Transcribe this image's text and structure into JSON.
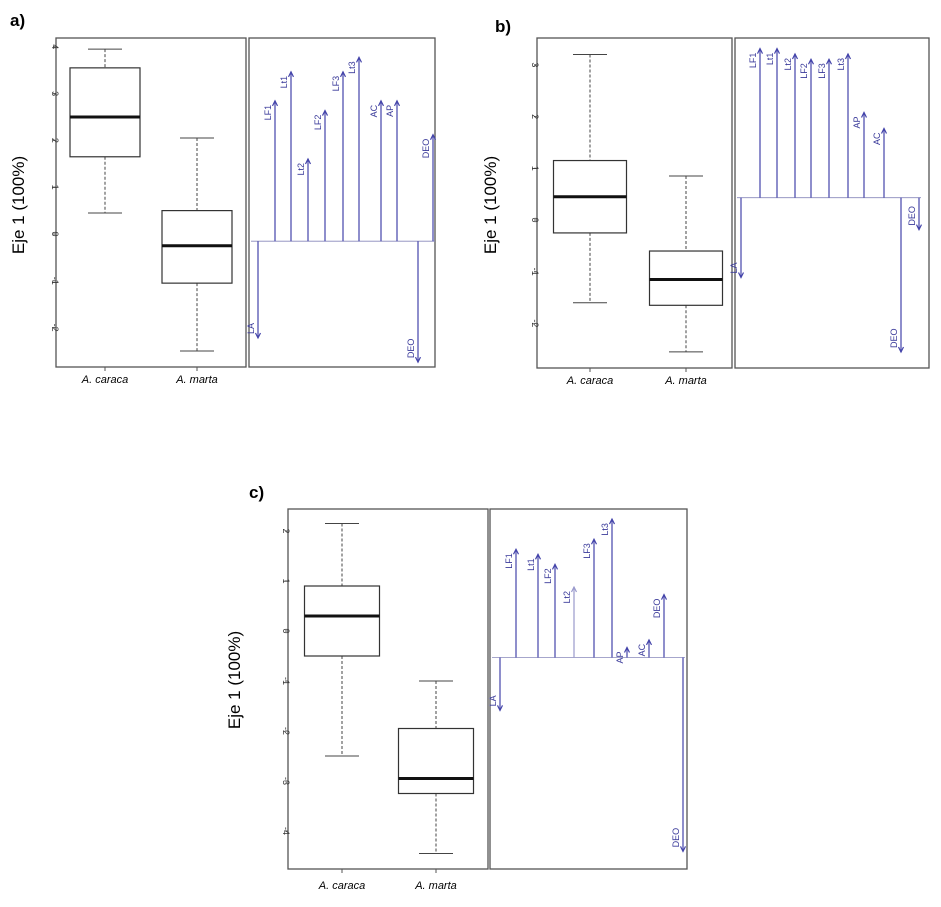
{
  "chart_data": [
    {
      "panel": "a)",
      "type": "boxplot",
      "ylabel": "Eje 1 (100%)",
      "ylim": [
        -2.6,
        4.2
      ],
      "yticks": [
        "-2",
        "-1",
        "0",
        "1",
        "2",
        "3",
        "4"
      ],
      "categories": [
        "A. caraca",
        "A. marta"
      ],
      "boxes": [
        {
          "name": "A. caraca",
          "min": 0.45,
          "q1": 1.65,
          "median": 2.5,
          "q3": 3.55,
          "max": 3.95
        },
        {
          "name": "A. marta",
          "min": -2.5,
          "q1": -1.05,
          "median": -0.25,
          "q3": 0.5,
          "max": 2.05
        }
      ],
      "biplot": {
        "ylim": [
          -2.6,
          4.2
        ],
        "base": 0,
        "arrows": [
          {
            "label": "LA",
            "value": -2.0,
            "color": "#4444aa"
          },
          {
            "label": "LF1",
            "value": 2.9,
            "color": "#4444aa"
          },
          {
            "label": "Lt1",
            "value": 3.5,
            "color": "#4444aa"
          },
          {
            "label": "Lt2",
            "value": 1.7,
            "color": "#4444aa"
          },
          {
            "label": "LF2",
            "value": 2.7,
            "color": "#4444aa"
          },
          {
            "label": "LF3",
            "value": 3.5,
            "color": "#4444aa"
          },
          {
            "label": "Lt3",
            "value": 3.8,
            "color": "#4444aa"
          },
          {
            "label": "AC",
            "value": 2.9,
            "color": "#4444aa"
          },
          {
            "label": "AP",
            "value": 2.9,
            "color": "#4444aa"
          },
          {
            "label": "DEO",
            "value": -2.5,
            "color": "#4444aa"
          },
          {
            "label": "DEO",
            "value": 2.2,
            "color": "#4444aa"
          }
        ]
      }
    },
    {
      "panel": "b)",
      "type": "boxplot",
      "ylabel": "Eje 1 (100%)",
      "ylim": [
        -2.8,
        3.4
      ],
      "yticks": [
        "-2",
        "-1",
        "0",
        "1",
        "2",
        "3"
      ],
      "categories": [
        "A. caraca",
        "A. marta"
      ],
      "boxes": [
        {
          "name": "A. caraca",
          "min": -1.6,
          "q1": -0.25,
          "median": 0.45,
          "q3": 1.15,
          "max": 3.2
        },
        {
          "name": "A. marta",
          "min": -2.55,
          "q1": -1.65,
          "median": -1.15,
          "q3": -0.6,
          "max": 0.85
        }
      ],
      "biplot": {
        "ylim": [
          -2.8,
          3.4
        ],
        "base": 0.4,
        "arrows": [
          {
            "label": "LA",
            "value": -1.1,
            "color": "#4444aa"
          },
          {
            "label": "LF1",
            "value": 3.2,
            "color": "#4444aa"
          },
          {
            "label": "Lt1",
            "value": 3.2,
            "color": "#4444aa"
          },
          {
            "label": "Lt2",
            "value": 3.1,
            "color": "#4444aa"
          },
          {
            "label": "LF2",
            "value": 3.0,
            "color": "#4444aa"
          },
          {
            "label": "LF3",
            "value": 3.0,
            "color": "#4444aa"
          },
          {
            "label": "Lt3",
            "value": 3.1,
            "color": "#4444aa"
          },
          {
            "label": "AP",
            "value": 2.0,
            "color": "#4444aa"
          },
          {
            "label": "AC",
            "value": 1.7,
            "color": "#4444aa"
          },
          {
            "label": "DEO",
            "value": -2.5,
            "color": "#4444aa"
          },
          {
            "label": "DEO",
            "value": -0.2,
            "color": "#4444aa"
          }
        ]
      }
    },
    {
      "panel": "c)",
      "type": "boxplot",
      "ylabel": "Eje 1 (100%)",
      "ylim": [
        -4.8,
        2.35
      ],
      "yticks": [
        "-4",
        "-3",
        "-2",
        "-1",
        "0",
        "1",
        "2"
      ],
      "categories": [
        "A. caraca",
        "A. marta"
      ],
      "boxes": [
        {
          "name": "A. caraca",
          "min": -2.5,
          "q1": -0.5,
          "median": 0.3,
          "q3": 0.9,
          "max": 2.15
        },
        {
          "name": "A. marta",
          "min": -4.45,
          "q1": -3.25,
          "median": -2.95,
          "q3": -1.95,
          "max": -1.0
        }
      ],
      "biplot": {
        "ylim": [
          -4.8,
          2.35
        ],
        "base": -0.6,
        "arrows": [
          {
            "label": "LA",
            "value": -1.65,
            "color": "#4444aa"
          },
          {
            "label": "LF1",
            "value": 1.55,
            "color": "#4444aa"
          },
          {
            "label": "Lt1",
            "value": 1.45,
            "color": "#4444aa"
          },
          {
            "label": "LF2",
            "value": 1.25,
            "color": "#4444aa"
          },
          {
            "label": "Lt2",
            "value": 0.8,
            "color": "#9999cc"
          },
          {
            "label": "LF3",
            "value": 1.75,
            "color": "#4444aa"
          },
          {
            "label": "Lt3",
            "value": 2.15,
            "color": "#4444aa"
          },
          {
            "label": "AP",
            "value": -0.4,
            "color": "#4444aa"
          },
          {
            "label": "AC",
            "value": -0.25,
            "color": "#4444aa"
          },
          {
            "label": "DEO",
            "value": 0.65,
            "color": "#4444aa"
          },
          {
            "label": "DEO",
            "value": -4.45,
            "color": "#4444aa"
          }
        ]
      }
    }
  ]
}
